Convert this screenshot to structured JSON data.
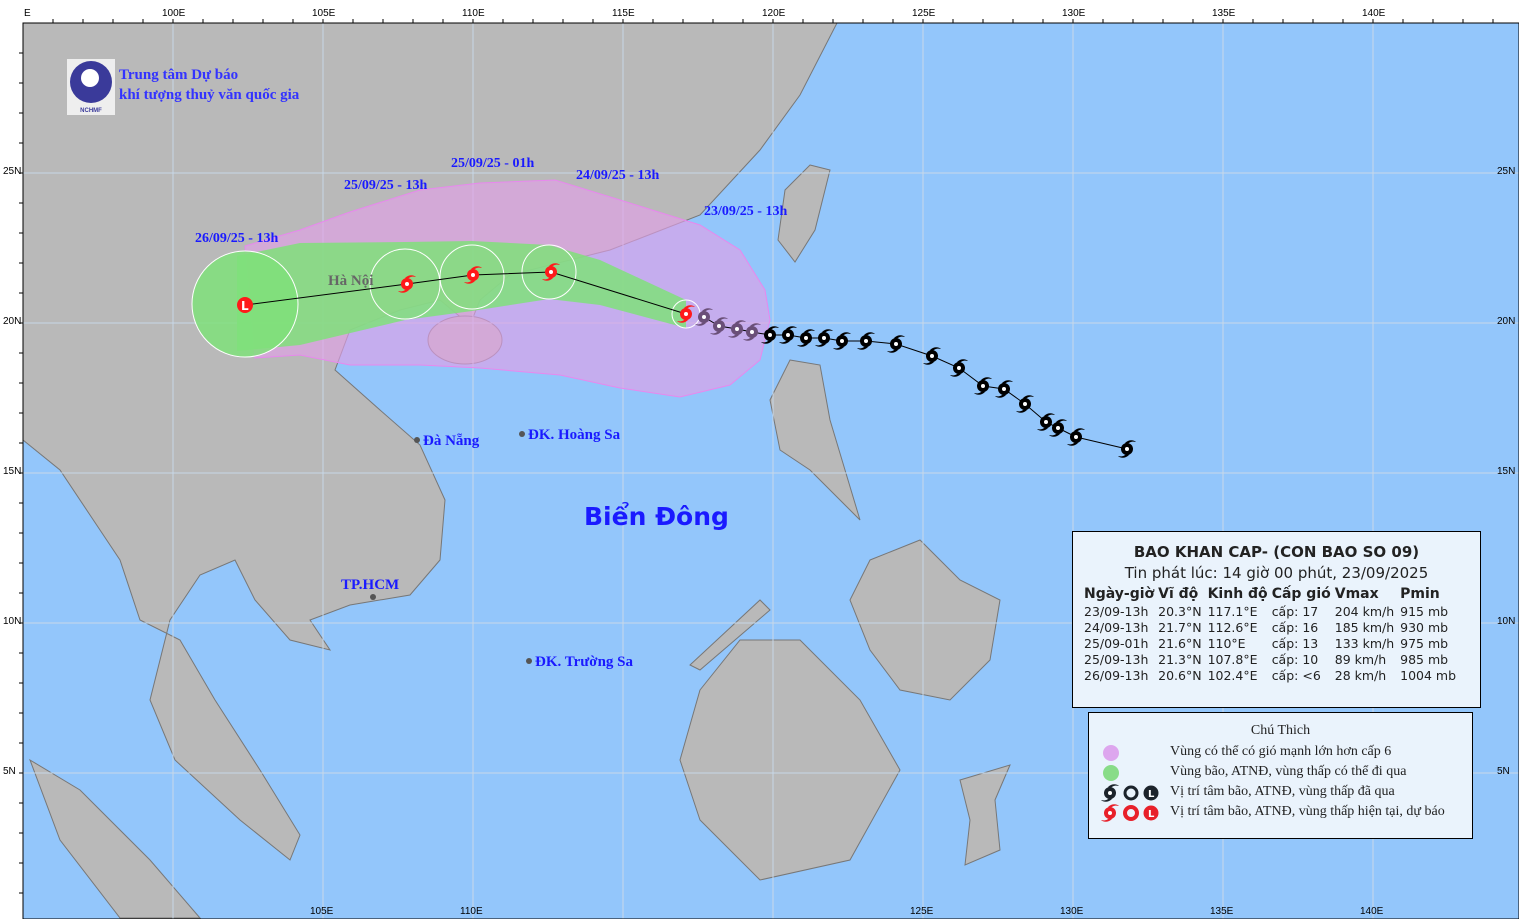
{
  "header": {
    "agency_line1": "Trung tâm Dự báo",
    "agency_line2": "khí tượng thuỷ văn quốc gia",
    "logo_text": "NCHMF"
  },
  "map": {
    "projection": "equirectangular",
    "lon_range": [
      95,
      145
    ],
    "lat_range": [
      0,
      30
    ],
    "top_ticks": [
      "100E",
      "105E",
      "110E",
      "115E",
      "120E",
      "125E",
      "130E",
      "135E",
      "140E"
    ],
    "bottom_ticks": [
      "105E",
      "110E",
      "125E",
      "130E",
      "135E",
      "140E"
    ],
    "lat_ticks": [
      "25N",
      "20N",
      "15N",
      "10N",
      "5N"
    ],
    "colors": {
      "sea": "#93c6fb",
      "land": "#b9b9b9",
      "wind_zone": "#e0a0e6",
      "storm_zone": "#7fe07a",
      "past": "#111111",
      "forecast": "#ff1a1a"
    }
  },
  "places": {
    "hanoi": "Hà Nội",
    "danang": "Đà Nẵng",
    "hoangsa": "ĐK. Hoàng Sa",
    "bien_dong": "Biển Đông",
    "tphcm": "TP.HCM",
    "truongsa": "ĐK. Trường Sa"
  },
  "forecast_labels": [
    "26/09/25 - 13h",
    "25/09/25 - 13h",
    "25/09/25 - 01h",
    "24/09/25 - 13h",
    "23/09/25 - 13h"
  ],
  "forecast_points": [
    {
      "lon": 117.1,
      "lat": 20.3,
      "type": "storm"
    },
    {
      "lon": 112.6,
      "lat": 21.7,
      "type": "storm"
    },
    {
      "lon": 110.0,
      "lat": 21.6,
      "type": "storm"
    },
    {
      "lon": 107.8,
      "lat": 21.3,
      "type": "storm"
    },
    {
      "lon": 102.4,
      "lat": 20.6,
      "type": "low"
    }
  ],
  "past_track": [
    [
      117.7,
      20.2
    ],
    [
      118.2,
      19.9
    ],
    [
      118.8,
      19.8
    ],
    [
      119.3,
      19.7
    ],
    [
      119.9,
      19.6
    ],
    [
      120.5,
      19.6
    ],
    [
      121.1,
      19.5
    ],
    [
      121.7,
      19.5
    ],
    [
      122.3,
      19.4
    ],
    [
      123.1,
      19.4
    ],
    [
      124.1,
      19.3
    ],
    [
      125.3,
      18.9
    ],
    [
      126.2,
      18.5
    ],
    [
      127.0,
      17.9
    ],
    [
      127.7,
      17.8
    ],
    [
      128.4,
      17.3
    ],
    [
      129.1,
      16.7
    ],
    [
      129.5,
      16.5
    ],
    [
      130.1,
      16.2
    ],
    [
      131.8,
      15.8
    ]
  ],
  "info": {
    "title": "BAO KHAN CAP- (CON BAO SO 09)",
    "issued": "Tin phát lúc: 14 giờ 00 phút, 23/09/2025",
    "columns": [
      "Ngày-giờ",
      "Vĩ độ",
      "Kinh độ",
      "Cấp gió",
      "Vmax",
      "Pmin"
    ],
    "rows": [
      [
        "23/09-13h",
        "20.3°N",
        "117.1°E",
        "cấp: 17",
        "204 km/h",
        "915 mb"
      ],
      [
        "24/09-13h",
        "21.7°N",
        "112.6°E",
        "cấp: 16",
        "185 km/h",
        "930 mb"
      ],
      [
        "25/09-01h",
        "21.6°N",
        "110°E",
        "cấp: 13",
        "133 km/h",
        "975 mb"
      ],
      [
        "25/09-13h",
        "21.3°N",
        "107.8°E",
        "cấp: 10",
        "89 km/h",
        "985 mb"
      ],
      [
        "26/09-13h",
        "20.6°N",
        "102.4°E",
        "cấp: <6",
        "28 km/h",
        "1004 mb"
      ]
    ]
  },
  "legend": {
    "title": "Chú Thich",
    "items": [
      "Vùng có thể có gió mạnh lớn hơn cấp 6",
      "Vùng bão, ATNĐ, vùng thấp có thể đi qua",
      "Vị trí tâm bão, ATNĐ, vùng thấp đã qua",
      "Vị trí tâm bão, ATNĐ, vùng thấp hiện tại, dự báo"
    ]
  }
}
